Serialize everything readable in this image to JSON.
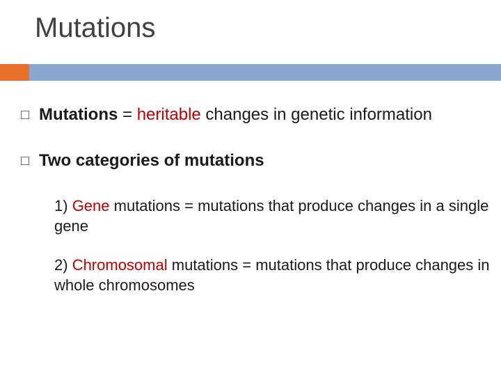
{
  "colors": {
    "accent_orange": "#e8712a",
    "accent_blue": "#8aa7cf",
    "title_text": "#3f3f3f",
    "body_text": "#1a1a1a",
    "red_text": "#c00000",
    "bullet_border": "#6d6d6d",
    "background": "#ffffff"
  },
  "title": "Mutations",
  "bullets": [
    {
      "segments": [
        {
          "text": "Mutations ",
          "bold": true,
          "red": false
        },
        {
          "text": "= ",
          "bold": false,
          "red": false
        },
        {
          "text": "heritable",
          "bold": false,
          "red": true
        },
        {
          "text": " changes in genetic information",
          "bold": false,
          "red": false
        }
      ]
    },
    {
      "segments": [
        {
          "text": "Two categories of mutations",
          "bold": true,
          "red": false
        }
      ],
      "sub": [
        {
          "segments": [
            {
              "text": "1) ",
              "bold": false,
              "red": false
            },
            {
              "text": "Gene",
              "bold": false,
              "red": true
            },
            {
              "text": " mutations = mutations that produce changes in a single gene",
              "bold": false,
              "red": false
            }
          ]
        },
        {
          "segments": [
            {
              "text": "2) ",
              "bold": false,
              "red": false
            },
            {
              "text": "Chromosomal",
              "bold": false,
              "red": true
            },
            {
              "text": " mutations = mutations that produce changes in whole chromosomes",
              "bold": false,
              "red": false
            }
          ]
        }
      ]
    }
  ]
}
